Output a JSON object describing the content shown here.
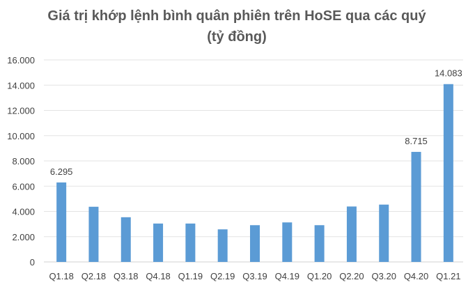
{
  "chart_data": {
    "type": "bar",
    "title": "Giá trị khớp lệnh bình quân phiên trên HoSE qua các quý (tỷ đồng)",
    "xlabel": "",
    "ylabel": "",
    "categories": [
      "Q1.18",
      "Q2.18",
      "Q3.18",
      "Q4.18",
      "Q1.19",
      "Q2.19",
      "Q3.19",
      "Q4.19",
      "Q1.20",
      "Q2.20",
      "Q3.20",
      "Q4.20",
      "Q1.21"
    ],
    "values": [
      6295,
      4370,
      3540,
      3040,
      3040,
      2580,
      2910,
      3130,
      2910,
      4390,
      4540,
      8715,
      14083
    ],
    "data_labels": {
      "0": "6.295",
      "11": "8.715",
      "12": "14.083"
    },
    "ylim": [
      0,
      16000
    ],
    "yticks": [
      0,
      2000,
      4000,
      6000,
      8000,
      10000,
      12000,
      14000,
      16000
    ],
    "ytick_labels": [
      "0",
      "2.000",
      "4.000",
      "6.000",
      "8.000",
      "10.000",
      "12.000",
      "14.000",
      "16.000"
    ],
    "grid": true,
    "legend": "none",
    "bar_color": "#5b9bd5"
  }
}
